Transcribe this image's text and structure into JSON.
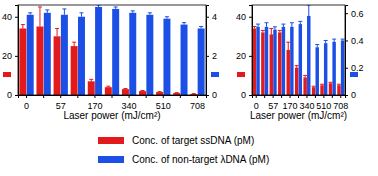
{
  "chart_data": [
    {
      "type": "bar",
      "x_label": "Laser power (mJ/cm²)",
      "categories": [
        0,
        null,
        57,
        null,
        170,
        null,
        340,
        null,
        510,
        null,
        708
      ],
      "ylim": [
        0,
        46
      ],
      "yticks": [
        0,
        20,
        40
      ],
      "y2lim": [
        0,
        4.6
      ],
      "y2ticks": [
        0,
        2,
        4
      ],
      "legend": "bottom",
      "series": [
        {
          "name": "Conc. of target ssDNA (pM)",
          "color": "#e31a1c",
          "values": [
            34,
            35,
            30,
            25,
            7,
            4,
            3,
            2,
            1.5,
            1,
            0.5
          ],
          "errors": [
            2,
            10,
            4,
            2,
            1,
            0.5,
            0.3,
            0.3,
            0.2,
            0.2,
            0.2
          ]
        },
        {
          "name": "Conc. of non-target λDNA (pM)",
          "color": "#1c4fe6",
          "axis": "y2",
          "values": [
            4.1,
            4.2,
            4.1,
            4.0,
            4.5,
            4.4,
            4.2,
            4.1,
            3.9,
            3.6,
            3.4
          ],
          "errors": [
            0.1,
            0.15,
            0.3,
            0.2,
            0.1,
            0.1,
            0.1,
            0.1,
            0.1,
            0.1,
            0.1
          ]
        }
      ]
    },
    {
      "type": "bar",
      "x_label": "Laser power (mJ/cm²)",
      "categories": [
        0,
        null,
        57,
        null,
        170,
        null,
        340,
        null,
        510,
        null,
        708
      ],
      "ylim": [
        0,
        46
      ],
      "yticks": [
        0,
        20,
        40
      ],
      "y2lim": [
        0,
        0.66
      ],
      "y2ticks": [
        0,
        0.2,
        0.4,
        0.6
      ],
      "series": [
        {
          "name": "Conc. of target ssDNA (pM)",
          "color": "#e31a1c",
          "values": [
            34,
            32,
            31,
            32,
            23,
            14,
            9,
            4,
            5,
            6,
            5
          ],
          "errors": [
            1,
            1,
            3,
            1,
            4,
            1,
            1,
            0.5,
            0.5,
            0.5,
            0.5
          ]
        },
        {
          "name": "Conc. of non-target λDNA (pM)",
          "color": "#1c4fe6",
          "axis": "y2",
          "values": [
            0.5,
            0.5,
            0.48,
            0.5,
            0.5,
            0.52,
            0.58,
            0.35,
            0.38,
            0.39,
            0.4
          ],
          "errors": [
            0.02,
            0.03,
            0.02,
            0.02,
            0.03,
            0.02,
            0.08,
            0.02,
            0.02,
            0.02,
            0.01
          ]
        }
      ]
    }
  ]
}
